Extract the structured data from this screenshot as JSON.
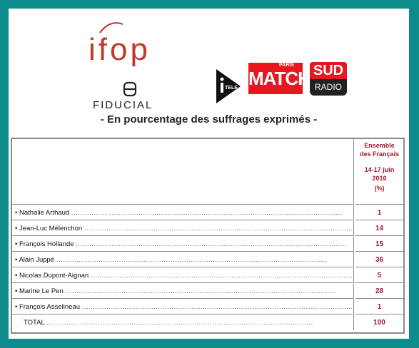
{
  "logos": {
    "ifop": "ifop",
    "fiducial": "FIDUCIAL",
    "itele_icon": "itele-logo",
    "match": "MATCH",
    "match_small": "PARIS",
    "sud": "SUD",
    "radio": "RADIO"
  },
  "subtitle": "- En pourcentage des suffrages exprimés -",
  "header": {
    "line1": "Ensemble",
    "line2": "des Français",
    "line3": "14-17 juin",
    "line4": "2016",
    "line5": "(%)"
  },
  "rows": [
    {
      "label": "• Nathalie Arthaud",
      "value": "1"
    },
    {
      "label": "• Jean-Luc Mélenchon",
      "value": "14"
    },
    {
      "label": "• François Hollande",
      "value": "15"
    },
    {
      "label": "• Alain Juppé",
      "value": "36"
    },
    {
      "label": "• Nicolas Dupont-Aignan",
      "value": "5"
    },
    {
      "label": "• Marine Le Pen",
      "value": "28"
    },
    {
      "label": "• François Asselineau",
      "value": "1"
    }
  ],
  "total": {
    "label": "TOTAL",
    "value": "100"
  },
  "colors": {
    "background": "#0e8b8b",
    "accent": "#a01a2c",
    "brand_red": "#e8161e"
  }
}
